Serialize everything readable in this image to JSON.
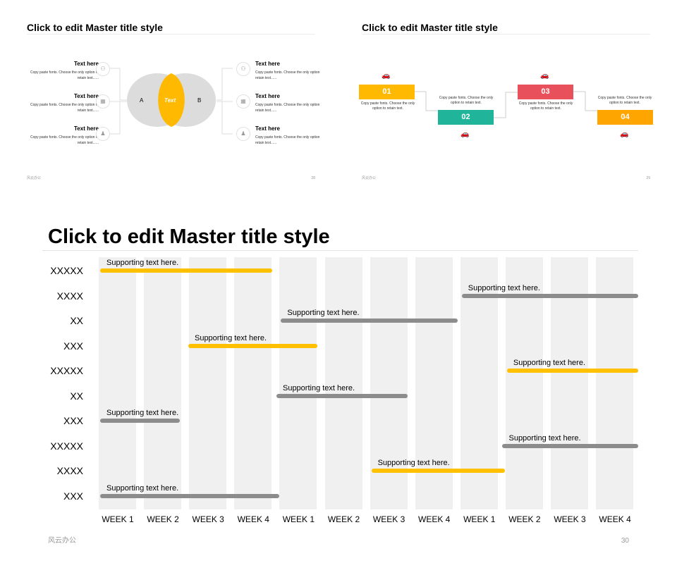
{
  "slide1": {
    "title": "Click to edit Master title style",
    "venn": {
      "a_label": "A",
      "b_label": "B",
      "center_label": "Text"
    },
    "left_items": [
      {
        "title": "Text here",
        "desc": "Copy paste fonts. Choose the only option to retain text......",
        "icon": "user-group-icon"
      },
      {
        "title": "Text here",
        "desc": "Copy paste fonts. Choose the only option to retain text......",
        "icon": "chart-icon"
      },
      {
        "title": "Text here",
        "desc": "Copy paste fonts. Choose the only option to retain text......",
        "icon": "person-icon"
      }
    ],
    "right_items": [
      {
        "title": "Text here",
        "desc": "Copy paste fonts. Choose the only option to retain text......",
        "icon": "user-group-icon"
      },
      {
        "title": "Text here",
        "desc": "Copy paste fonts. Choose the only option to retain text......",
        "icon": "chart-icon"
      },
      {
        "title": "Text here",
        "desc": "Copy paste fonts. Choose the only option to retain text......",
        "icon": "person-icon"
      }
    ],
    "footer_left": "风云办公",
    "page_number": "28"
  },
  "slide2": {
    "title": "Click to edit Master title style",
    "steps": [
      {
        "number": "01",
        "desc": "Copy paste fonts. Choose the only option to retain text.",
        "color": "#FFB900"
      },
      {
        "number": "02",
        "desc": "Copy paste fonts. Choose the only option to retain text.",
        "color": "#20B49A"
      },
      {
        "number": "03",
        "desc": "Copy paste fonts. Choose the only option to retain text.",
        "color": "#E8505B"
      },
      {
        "number": "04",
        "desc": "Copy paste fonts. Choose the only option to retain text.",
        "color": "#FFA500"
      }
    ],
    "footer_left": "风云办公",
    "page_number": "29"
  },
  "slide3": {
    "title": "Click to edit Master title style",
    "rows": [
      "XXXXX",
      "XXXX",
      "XX",
      "XXX",
      "XXXXX",
      "XX",
      "XXX",
      "XXXXX",
      "XXXX",
      "XXX"
    ],
    "weeks": [
      "WEEK 1",
      "WEEK 2",
      "WEEK 3",
      "WEEK 4",
      "WEEK 1",
      "WEEK 2",
      "WEEK 3",
      "WEEK 4",
      "WEEK 1",
      "WEEK 2",
      "WEEK 3",
      "WEEK 4"
    ],
    "tasks": [
      {
        "label": "Supporting text here.",
        "start": 0,
        "end": 3.9,
        "color": "#FFC000"
      },
      {
        "label": "Supporting text here.",
        "start": 8,
        "end": 12,
        "color": "#8C8C8C"
      },
      {
        "label": "Supporting text here.",
        "start": 4,
        "end": 8,
        "color": "#8C8C8C"
      },
      {
        "label": "Supporting text here.",
        "start": 1.95,
        "end": 4.9,
        "color": "#FFC000"
      },
      {
        "label": "Supporting text here.",
        "start": 9,
        "end": 12,
        "color": "#FFC000"
      },
      {
        "label": "Supporting text here.",
        "start": 3.9,
        "end": 6.9,
        "color": "#8C8C8C"
      },
      {
        "label": "Supporting text here.",
        "start": 0,
        "end": 1.85,
        "color": "#8C8C8C"
      },
      {
        "label": "Supporting text here.",
        "start": 8.9,
        "end": 12,
        "color": "#8C8C8C"
      },
      {
        "label": "Supporting text here.",
        "start": 6,
        "end": 9.05,
        "color": "#FFC000"
      },
      {
        "label": "Supporting text here.",
        "start": 0,
        "end": 4.05,
        "color": "#8C8C8C"
      }
    ],
    "footer_left": "风云办公",
    "page_number": "30"
  }
}
